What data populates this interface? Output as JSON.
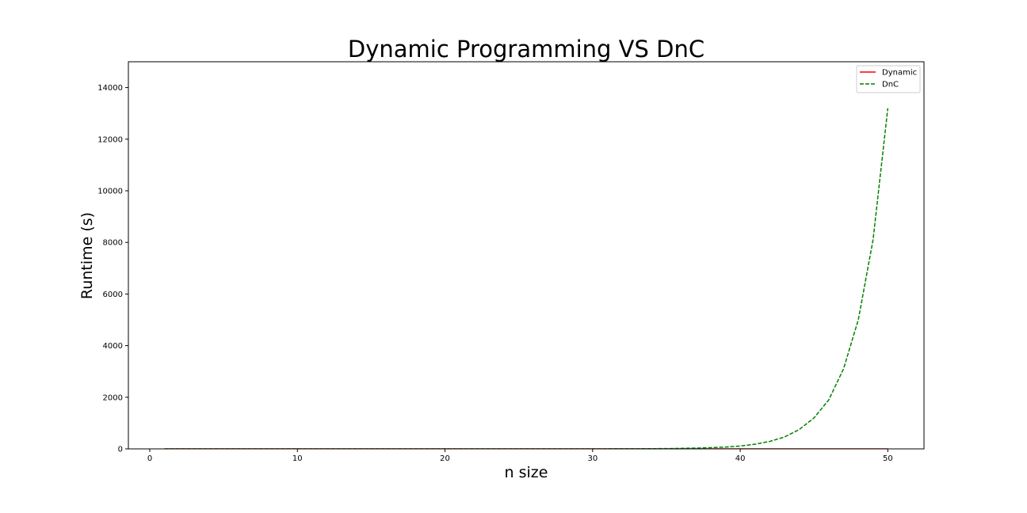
{
  "chart_data": {
    "type": "line",
    "title": "Dynamic Programming VS DnC",
    "xlabel": "n size",
    "ylabel": "Runtime (s)",
    "xlim": [
      -1.45,
      52.45
    ],
    "ylim": [
      0,
      15000
    ],
    "xticks": [
      0,
      10,
      20,
      30,
      40,
      50
    ],
    "yticks": [
      0,
      2000,
      4000,
      6000,
      8000,
      10000,
      12000,
      14000
    ],
    "grid": false,
    "legend_position": "top-right",
    "x": [
      1,
      2,
      3,
      4,
      5,
      6,
      7,
      8,
      9,
      10,
      11,
      12,
      13,
      14,
      15,
      16,
      17,
      18,
      19,
      20,
      21,
      22,
      23,
      24,
      25,
      26,
      27,
      28,
      29,
      30,
      31,
      32,
      33,
      34,
      35,
      36,
      37,
      38,
      39,
      40,
      41,
      42,
      43,
      44,
      45,
      46,
      47,
      48,
      49,
      50
    ],
    "series": [
      {
        "name": "Dynamic",
        "color": "#ff0000",
        "style": "solid",
        "values": [
          0,
          0,
          0,
          0,
          0,
          0,
          0,
          0,
          0,
          0,
          0,
          0,
          0,
          0,
          0,
          0,
          0,
          0,
          0,
          0,
          0,
          0,
          0,
          0,
          0,
          0,
          0,
          0,
          0,
          0,
          0,
          0,
          0,
          0,
          0,
          0,
          0,
          0,
          0,
          0,
          0,
          0,
          0,
          0,
          0,
          0,
          0,
          0,
          0,
          0
        ]
      },
      {
        "name": "DnC",
        "color": "#008000",
        "style": "dashed",
        "values": [
          0,
          0,
          0,
          0,
          0,
          0,
          0,
          0,
          0,
          0,
          0,
          0,
          0,
          0,
          0,
          0,
          0,
          0,
          0,
          0,
          0,
          0,
          0,
          0,
          0.1,
          0.2,
          0.3,
          0.5,
          0.7,
          1.2,
          1.9,
          3,
          5,
          8,
          12,
          19,
          30,
          48,
          70,
          110,
          180,
          290,
          460,
          750,
          1200,
          1900,
          3100,
          5000,
          8100,
          13200
        ]
      }
    ]
  }
}
